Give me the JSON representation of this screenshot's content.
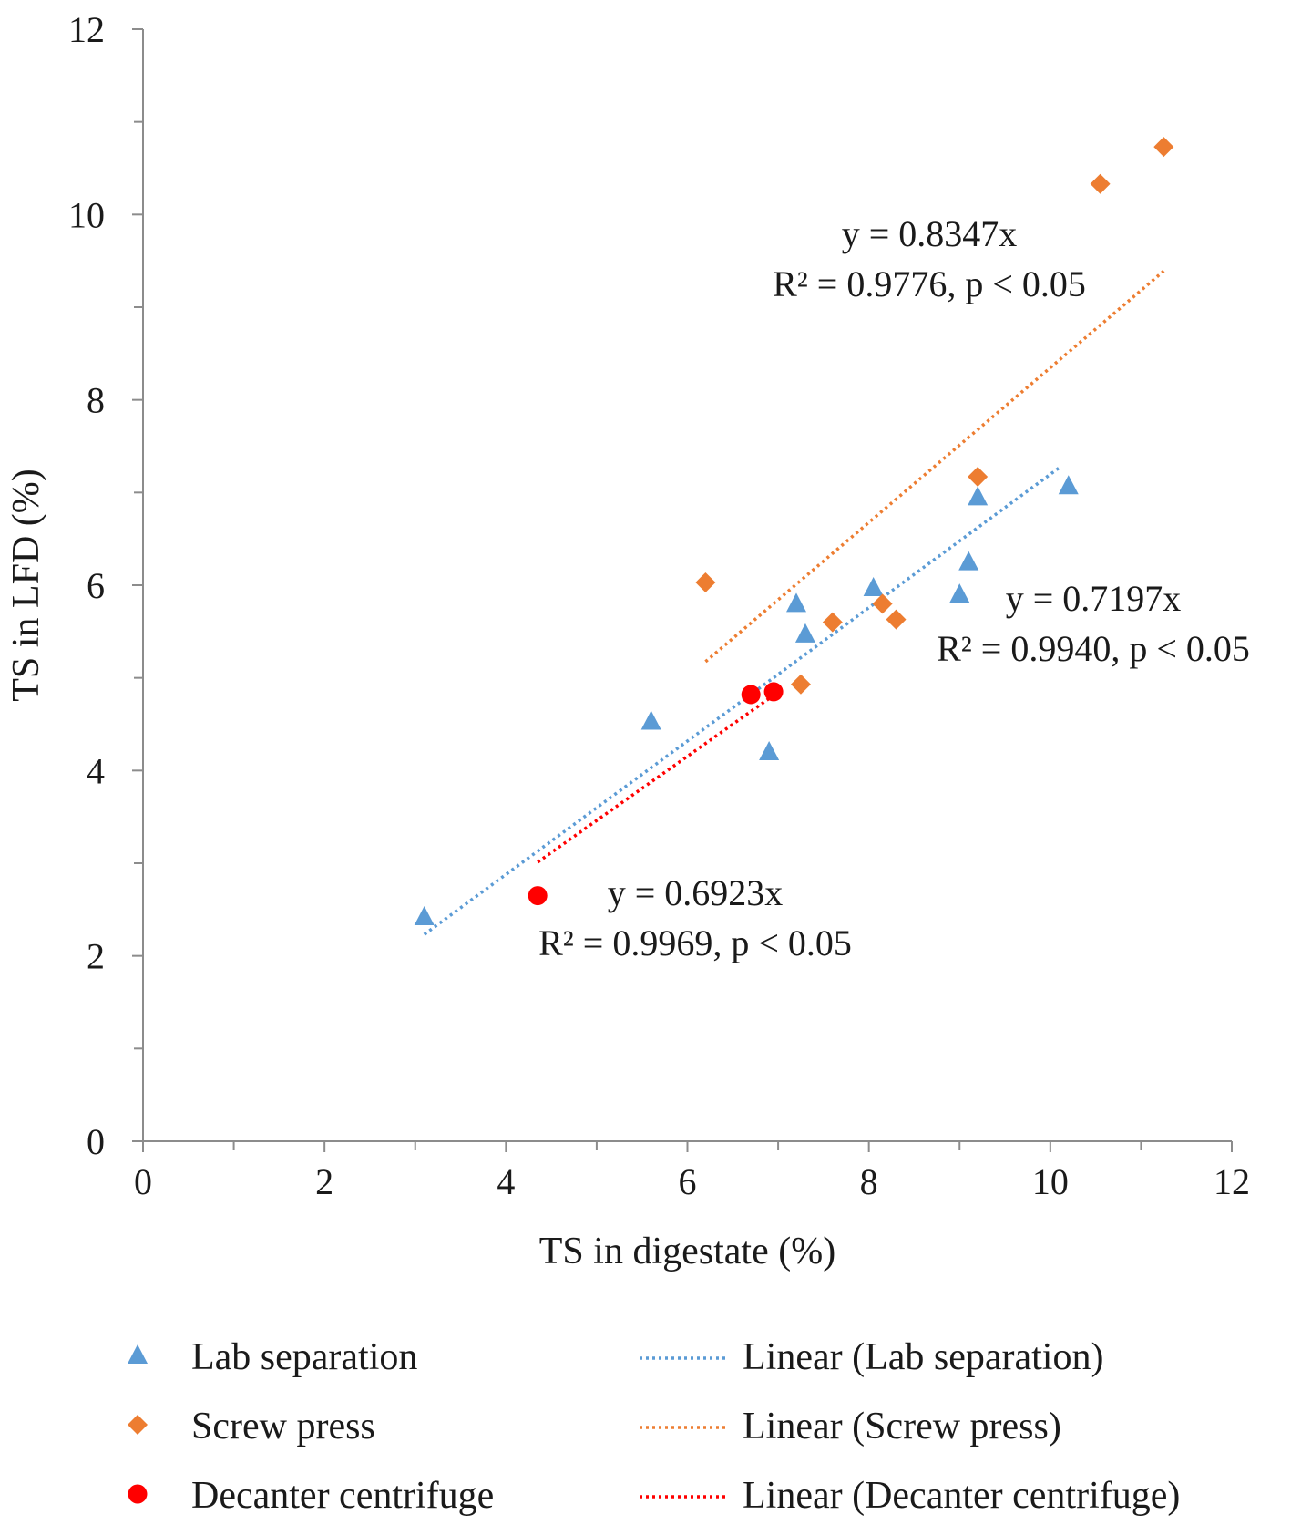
{
  "chart_data": {
    "type": "scatter",
    "title": "",
    "xlabel": "TS in digestate (%)",
    "ylabel": "TS in LFD (%)",
    "xlim": [
      0,
      12
    ],
    "ylim": [
      0,
      12
    ],
    "xticks": [
      "0",
      "2",
      "4",
      "6",
      "8",
      "10",
      "12"
    ],
    "yticks": [
      "0",
      "2",
      "4",
      "6",
      "8",
      "10",
      "12"
    ],
    "grid": false,
    "legend_position": "bottom",
    "series": [
      {
        "name": "Lab separation",
        "marker": "triangle",
        "color": "#5b9bd5",
        "points": [
          [
            3.1,
            2.42
          ],
          [
            5.6,
            4.53
          ],
          [
            6.9,
            4.2
          ],
          [
            7.2,
            5.8
          ],
          [
            7.3,
            5.47
          ],
          [
            8.05,
            5.97
          ],
          [
            9.0,
            5.9
          ],
          [
            9.1,
            6.25
          ],
          [
            9.2,
            6.95
          ],
          [
            10.2,
            7.07
          ]
        ]
      },
      {
        "name": "Screw press",
        "marker": "diamond",
        "color": "#ed7d31",
        "points": [
          [
            6.2,
            6.03
          ],
          [
            7.25,
            4.93
          ],
          [
            7.6,
            5.6
          ],
          [
            8.15,
            5.8
          ],
          [
            8.3,
            5.63
          ],
          [
            9.2,
            7.17
          ],
          [
            10.55,
            10.33
          ],
          [
            11.25,
            10.73
          ]
        ]
      },
      {
        "name": "Decanter centrifuge",
        "marker": "circle",
        "color": "#ff0000",
        "points": [
          [
            4.35,
            2.65
          ],
          [
            6.7,
            4.82
          ],
          [
            6.95,
            4.85
          ]
        ]
      }
    ],
    "trendlines": [
      {
        "name": "Linear (Lab separation)",
        "color": "#5b9bd5",
        "slope": 0.7197,
        "x_range": [
          3.1,
          10.1
        ]
      },
      {
        "name": "Linear (Screw press)",
        "color": "#ed7d31",
        "slope": 0.8347,
        "x_range": [
          6.2,
          11.25
        ]
      },
      {
        "name": "Linear (Decanter centrifuge)",
        "color": "#ff0000",
        "slope": 0.6923,
        "x_range": [
          4.35,
          6.95
        ]
      }
    ],
    "annotations": [
      {
        "lines": [
          "y = 0.8347x",
          "R² = 0.9776,  p < 0.05"
        ],
        "series": "Screw press"
      },
      {
        "lines": [
          "y = 0.7197x",
          "R² = 0.9940,  p < 0.05"
        ],
        "series": "Lab separation"
      },
      {
        "lines": [
          "y = 0.6923x",
          "R² = 0.9969,  p < 0.05"
        ],
        "series": "Decanter centrifuge"
      }
    ]
  }
}
